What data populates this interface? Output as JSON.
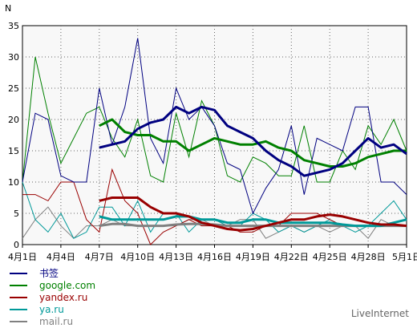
{
  "chart_data": {
    "type": "line",
    "ylabel": "N",
    "ylim": [
      0,
      35
    ],
    "yticks": [
      0,
      5,
      10,
      15,
      20,
      25,
      30,
      35
    ],
    "grid": true,
    "x_ticks": [
      {
        "day": 1,
        "label": "4月1日"
      },
      {
        "day": 4,
        "label": "4月4日"
      },
      {
        "day": 7,
        "label": "4月7日"
      },
      {
        "day": 10,
        "label": "4月10日"
      },
      {
        "day": 13,
        "label": "4月13日"
      },
      {
        "day": 16,
        "label": "4月16日"
      },
      {
        "day": 19,
        "label": "4月19日"
      },
      {
        "day": 22,
        "label": "4月22日"
      },
      {
        "day": 25,
        "label": "4月25日"
      },
      {
        "day": 28,
        "label": "4月28日"
      },
      {
        "day": 31,
        "label": "5月1日"
      }
    ],
    "series": [
      {
        "name": "书签",
        "color": "#000080",
        "values": [
          10,
          21,
          20,
          11,
          10,
          10,
          25,
          16,
          22,
          33,
          17,
          13,
          25,
          20,
          22,
          19,
          13,
          12,
          5,
          9,
          12,
          19,
          8,
          17,
          16,
          15,
          22,
          22,
          10,
          10,
          8
        ],
        "trend": [
          null,
          null,
          null,
          null,
          null,
          null,
          15.5,
          16,
          16.5,
          18.5,
          19.5,
          20,
          22,
          21,
          22,
          21.5,
          19,
          18,
          17,
          15,
          13.5,
          12.5,
          11,
          11.5,
          12,
          13,
          15,
          17,
          15.5,
          16,
          14.5
        ]
      },
      {
        "name": "google.com",
        "color": "#008000",
        "values": [
          10,
          30,
          21,
          13,
          17,
          21,
          22,
          17,
          14,
          20,
          11,
          10,
          21,
          14,
          23,
          19,
          11,
          10,
          14,
          13,
          11,
          11,
          19,
          10,
          10,
          15,
          12,
          19,
          16,
          20,
          15
        ],
        "trend": [
          null,
          null,
          null,
          null,
          null,
          null,
          19,
          20,
          18,
          17.5,
          17.5,
          16.5,
          16.5,
          15,
          16,
          17,
          16.5,
          16,
          16,
          16.5,
          15.5,
          15,
          13.5,
          13,
          12.5,
          12.5,
          13,
          14,
          14.5,
          15,
          15
        ]
      },
      {
        "name": "yandex.ru",
        "color": "#990000",
        "values": [
          8,
          8,
          7,
          10,
          10,
          4,
          2,
          12,
          7,
          5,
          0,
          2,
          3,
          4,
          3,
          3,
          3,
          2,
          2,
          3,
          3,
          5,
          5,
          5,
          4,
          3,
          3,
          3,
          3,
          3,
          3
        ],
        "trend": [
          null,
          null,
          null,
          null,
          null,
          null,
          7,
          7.5,
          7.5,
          7.5,
          6,
          5,
          5,
          4.5,
          3.5,
          3,
          2.5,
          2.3,
          2.5,
          3,
          3.5,
          4,
          4,
          4.5,
          4.8,
          4.5,
          4,
          3.5,
          3.2,
          3.2,
          3
        ]
      },
      {
        "name": "ya.ru",
        "color": "#009999",
        "values": [
          10,
          4,
          2,
          5,
          1,
          2,
          6,
          6,
          3,
          7,
          2,
          5,
          5,
          2,
          4,
          4,
          3,
          3,
          5,
          4,
          2,
          3,
          2,
          3,
          4,
          3,
          2,
          3,
          5,
          7,
          4
        ],
        "trend": [
          null,
          null,
          null,
          null,
          null,
          null,
          4.5,
          4,
          4,
          4,
          4,
          4,
          4.5,
          4.5,
          4,
          4,
          3.5,
          3.5,
          4,
          4,
          3.5,
          3.5,
          3.5,
          3.5,
          3.5,
          3.2,
          3,
          3,
          3,
          3.5,
          4
        ]
      },
      {
        "name": "mail.ru",
        "color": "#808080",
        "values": [
          1,
          4,
          6,
          3,
          1,
          3,
          3,
          4,
          3,
          3,
          3,
          3,
          3,
          4,
          4,
          3,
          3,
          4,
          4,
          1,
          2,
          3,
          2,
          3,
          2,
          3,
          3,
          1,
          4,
          3,
          3
        ],
        "trend": [
          null,
          null,
          null,
          null,
          null,
          null,
          3,
          3.3,
          3.3,
          3,
          3,
          3,
          3.2,
          3.3,
          3.3,
          3.2,
          3,
          3,
          3,
          3,
          3,
          3,
          3,
          3,
          3,
          3,
          3,
          3,
          3,
          3,
          3
        ]
      }
    ]
  },
  "brand": "LiveInternet"
}
